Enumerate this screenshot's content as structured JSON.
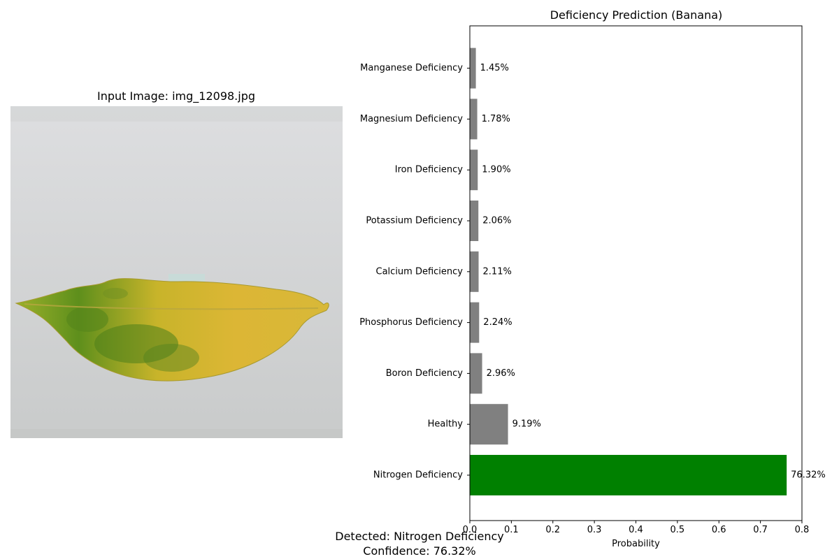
{
  "image_panel": {
    "title": "Input Image: img_12098.jpg",
    "image_subject": "yellowing banana leaf with green blotches on white background"
  },
  "footer": {
    "detected": "Detected: Nitrogen Deficiency",
    "confidence": "Confidence: 76.32%"
  },
  "chart_data": {
    "type": "bar",
    "orientation": "horizontal",
    "title": "Deficiency Prediction (Banana)",
    "xlabel": "Probability",
    "ylabel": "",
    "xlim": [
      0,
      0.8
    ],
    "xticks": [
      "0.0",
      "0.1",
      "0.2",
      "0.3",
      "0.4",
      "0.5",
      "0.6",
      "0.7",
      "0.8"
    ],
    "grid": false,
    "categories": [
      "Nitrogen Deficiency",
      "Healthy",
      "Boron Deficiency",
      "Phosphorus Deficiency",
      "Calcium Deficiency",
      "Potassium Deficiency",
      "Iron Deficiency",
      "Magnesium Deficiency",
      "Manganese Deficiency"
    ],
    "values": [
      0.7632,
      0.0919,
      0.0296,
      0.0224,
      0.0211,
      0.0206,
      0.019,
      0.0178,
      0.0145
    ],
    "value_labels": [
      "76.32%",
      "9.19%",
      "2.96%",
      "2.24%",
      "2.11%",
      "2.06%",
      "1.90%",
      "1.78%",
      "1.45%"
    ],
    "colors": {
      "highlight": "#008000",
      "default": "#808080"
    },
    "highlight_index": 0
  }
}
